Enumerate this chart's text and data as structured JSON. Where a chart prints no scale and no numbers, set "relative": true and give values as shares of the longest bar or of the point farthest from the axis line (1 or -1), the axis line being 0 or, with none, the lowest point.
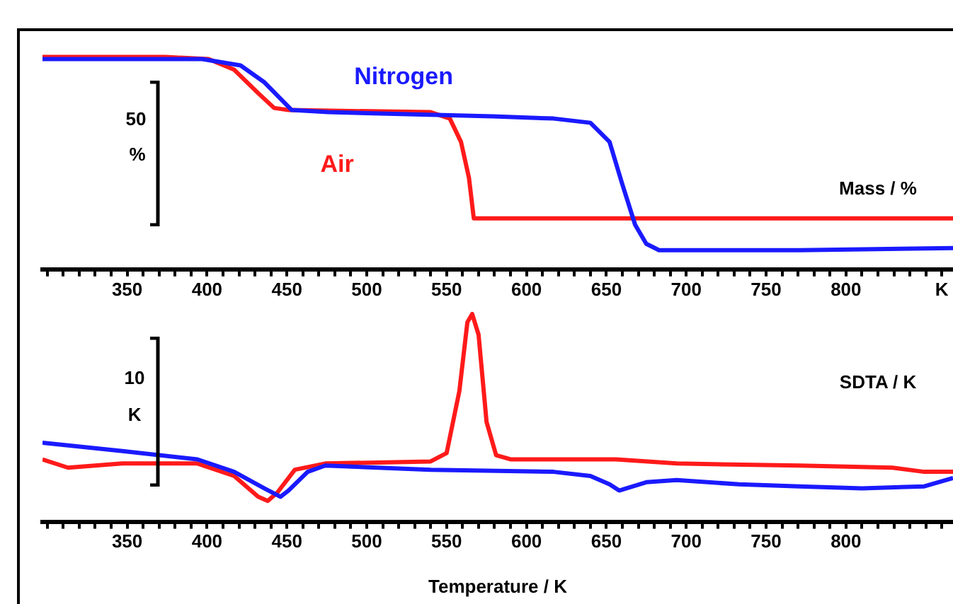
{
  "chart_data": [
    {
      "type": "line",
      "ylabel": "Mass / %",
      "relative": true,
      "legend": false,
      "grid": false,
      "marker": "none",
      "line_style": "solid",
      "annotations": [
        "50",
        "%"
      ],
      "xlim": [
        297,
        867
      ],
      "xticks": [
        {
          "value": 300,
          "label": null
        },
        {
          "value": 310,
          "label": null
        },
        {
          "value": 320,
          "label": null
        },
        {
          "value": 330,
          "label": null
        },
        {
          "value": 340,
          "label": null
        },
        350,
        {
          "value": 360,
          "label": null
        },
        {
          "value": 370,
          "label": null
        },
        {
          "value": 380,
          "label": null
        },
        {
          "value": 390,
          "label": null
        },
        400,
        {
          "value": 410,
          "label": null
        },
        {
          "value": 420,
          "label": null
        },
        {
          "value": 430,
          "label": null
        },
        {
          "value": 440,
          "label": null
        },
        450,
        {
          "value": 460,
          "label": null
        },
        {
          "value": 470,
          "label": null
        },
        {
          "value": 480,
          "label": null
        },
        {
          "value": 490,
          "label": null
        },
        500,
        {
          "value": 510,
          "label": null
        },
        {
          "value": 520,
          "label": null
        },
        {
          "value": 530,
          "label": null
        },
        {
          "value": 540,
          "label": null
        },
        550,
        {
          "value": 560,
          "label": null
        },
        {
          "value": 570,
          "label": null
        },
        {
          "value": 580,
          "label": null
        },
        {
          "value": 590,
          "label": null
        },
        600,
        {
          "value": 610,
          "label": null
        },
        {
          "value": 620,
          "label": null
        },
        {
          "value": 630,
          "label": null
        },
        {
          "value": 640,
          "label": null
        },
        650,
        {
          "value": 660,
          "label": null
        },
        {
          "value": 670,
          "label": null
        },
        {
          "value": 680,
          "label": null
        },
        {
          "value": 690,
          "label": null
        },
        700,
        {
          "value": 710,
          "label": null
        },
        {
          "value": 720,
          "label": null
        },
        {
          "value": 730,
          "label": null
        },
        {
          "value": 740,
          "label": null
        },
        750,
        {
          "value": 760,
          "label": null
        },
        {
          "value": 770,
          "label": null
        },
        {
          "value": 780,
          "label": null
        },
        {
          "value": 790,
          "label": null
        },
        800,
        {
          "value": 810,
          "label": null
        },
        {
          "value": 820,
          "label": null
        },
        {
          "value": 830,
          "label": null
        },
        {
          "value": 840,
          "label": null
        },
        {
          "value": 850,
          "label": null
        },
        {
          "value": 860,
          "label": "K"
        }
      ],
      "series": [
        {
          "name": "Nitrogen",
          "color": "#1a1aff",
          "x": [
            297,
            397,
            421,
            436,
            453,
            476,
            579,
            617,
            640,
            652,
            660,
            668,
            675,
            683,
            771,
            867
          ],
          "values": [
            0.99,
            0.99,
            0.96,
            0.88,
            0.75,
            0.74,
            0.72,
            0.71,
            0.69,
            0.6,
            0.4,
            0.21,
            0.12,
            0.09,
            0.09,
            0.1
          ]
        },
        {
          "name": "Air",
          "color": "#ff1a1a",
          "x": [
            297,
            374,
            401,
            417,
            432,
            442,
            451,
            540,
            552,
            559,
            564,
            567,
            579,
            867
          ],
          "values": [
            1.0,
            1.0,
            0.99,
            0.94,
            0.83,
            0.76,
            0.75,
            0.74,
            0.71,
            0.6,
            0.43,
            0.24,
            0.24,
            0.24
          ]
        }
      ]
    },
    {
      "type": "line",
      "ylabel": "SDTA / K",
      "xlabel": "Temperature / K",
      "relative": true,
      "legend": false,
      "grid": false,
      "marker": "none",
      "line_style": "solid",
      "annotations": [
        "10",
        "K"
      ],
      "xlim": [
        297,
        867
      ],
      "xticks": [
        {
          "value": 300,
          "label": null
        },
        {
          "value": 310,
          "label": null
        },
        {
          "value": 320,
          "label": null
        },
        {
          "value": 330,
          "label": null
        },
        {
          "value": 340,
          "label": null
        },
        350,
        {
          "value": 360,
          "label": null
        },
        {
          "value": 370,
          "label": null
        },
        {
          "value": 380,
          "label": null
        },
        {
          "value": 390,
          "label": null
        },
        400,
        {
          "value": 410,
          "label": null
        },
        {
          "value": 420,
          "label": null
        },
        {
          "value": 430,
          "label": null
        },
        {
          "value": 440,
          "label": null
        },
        450,
        {
          "value": 460,
          "label": null
        },
        {
          "value": 470,
          "label": null
        },
        {
          "value": 480,
          "label": null
        },
        {
          "value": 490,
          "label": null
        },
        500,
        {
          "value": 510,
          "label": null
        },
        {
          "value": 520,
          "label": null
        },
        {
          "value": 530,
          "label": null
        },
        {
          "value": 540,
          "label": null
        },
        550,
        {
          "value": 560,
          "label": null
        },
        {
          "value": 570,
          "label": null
        },
        {
          "value": 580,
          "label": null
        },
        {
          "value": 590,
          "label": null
        },
        600,
        {
          "value": 610,
          "label": null
        },
        {
          "value": 620,
          "label": null
        },
        {
          "value": 630,
          "label": null
        },
        {
          "value": 640,
          "label": null
        },
        650,
        {
          "value": 660,
          "label": null
        },
        {
          "value": 670,
          "label": null
        },
        {
          "value": 680,
          "label": null
        },
        {
          "value": 690,
          "label": null
        },
        700,
        {
          "value": 710,
          "label": null
        },
        {
          "value": 720,
          "label": null
        },
        {
          "value": 730,
          "label": null
        },
        {
          "value": 740,
          "label": null
        },
        750,
        {
          "value": 760,
          "label": null
        },
        {
          "value": 770,
          "label": null
        },
        {
          "value": 780,
          "label": null
        },
        {
          "value": 790,
          "label": null
        },
        800,
        {
          "value": 810,
          "label": null
        },
        {
          "value": 820,
          "label": null
        },
        {
          "value": 830,
          "label": null
        },
        {
          "value": 840,
          "label": null
        },
        {
          "value": 850,
          "label": null
        },
        {
          "value": 860,
          "label": null
        }
      ],
      "series": [
        {
          "color": "#1a1aff",
          "x": [
            297,
            347,
            394,
            417,
            436,
            446,
            451,
            463,
            474,
            540,
            617,
            640,
            652,
            658,
            675,
            694,
            733,
            771,
            810,
            849,
            867
          ],
          "values": [
            0.38,
            0.34,
            0.3,
            0.24,
            0.16,
            0.12,
            0.15,
            0.24,
            0.27,
            0.25,
            0.24,
            0.22,
            0.18,
            0.15,
            0.19,
            0.2,
            0.18,
            0.17,
            0.16,
            0.17,
            0.21
          ]
        },
        {
          "color": "#ff1a1a",
          "x": [
            297,
            313,
            347,
            394,
            417,
            432,
            438,
            444,
            455,
            474,
            540,
            550,
            558,
            563,
            566,
            570,
            575,
            581,
            590,
            617,
            656,
            694,
            771,
            829,
            849,
            867
          ],
          "values": [
            0.3,
            0.26,
            0.28,
            0.28,
            0.22,
            0.12,
            0.1,
            0.14,
            0.25,
            0.28,
            0.29,
            0.33,
            0.63,
            0.96,
            1.0,
            0.9,
            0.48,
            0.32,
            0.3,
            0.3,
            0.3,
            0.28,
            0.27,
            0.26,
            0.24,
            0.24
          ]
        }
      ]
    }
  ]
}
